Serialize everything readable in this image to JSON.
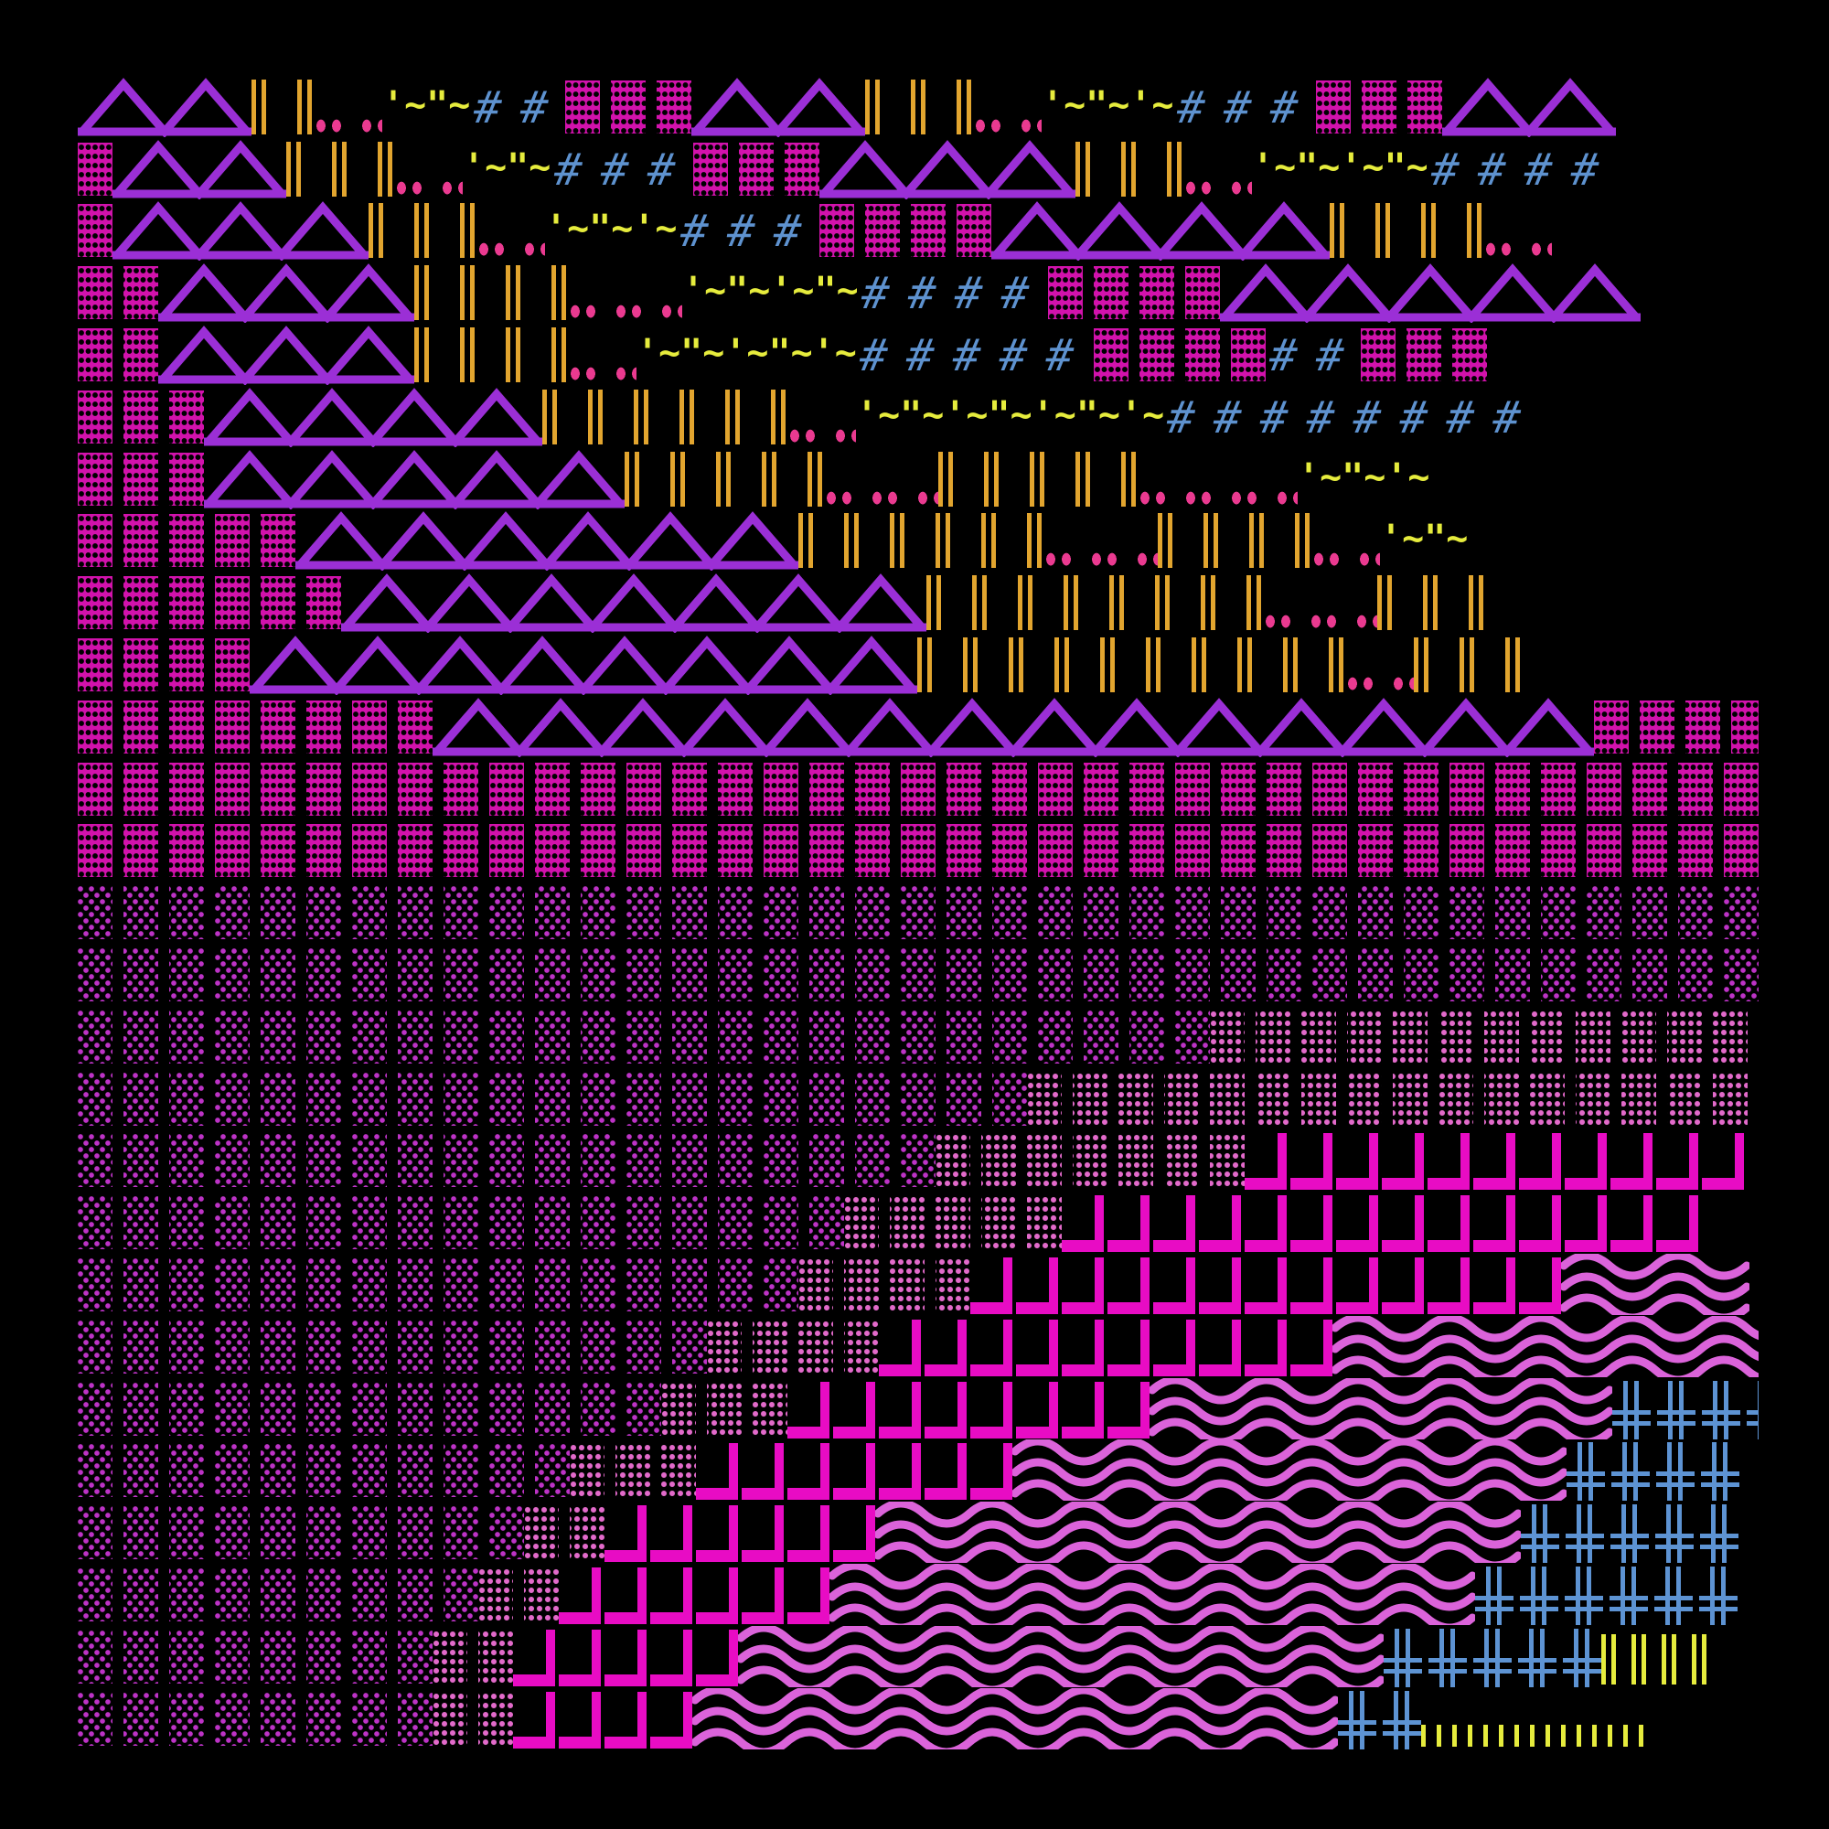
{
  "art": {
    "background": "#000000",
    "palette": {
      "triangle": "#9b2fd6",
      "dense_block": "#d212ac",
      "block_hole": "#000000",
      "sparse_dot": "#bd33c6",
      "medium_dot": "#e26aca",
      "gold_bar": "#e2a52f",
      "pink_dot": "#ea3a90",
      "yellow": "#e6ec3d",
      "hash_blue": "#5e92cf",
      "comb_magenta": "#e80cc4",
      "wave_violet": "#db63da",
      "cross_blue": "#5d93d3"
    },
    "glyph_legend": {
      "T": "triangle-run",
      "B": "dense-dot-block-run",
      "b": "sparse-dot-block-run",
      "m": "medium-dot-block-run",
      "I": "gold-double-bar-run",
      "d": "pink-dot-pair-run",
      "q": "quote-tilde-run",
      "H": "hash-run",
      "C": "magenta-comb-run",
      "W": "triple-wave-run",
      "X": "blue-double-cross-run",
      "Y": "yellow-double-bar-run",
      "y": "yellow-short-bar-run"
    },
    "tilde_unit": "'~",
    "tilde_unit_alt": "\"~",
    "hash_char": "#",
    "rows": [
      [
        [
          "T",
          2
        ],
        [
          "I",
          2
        ],
        [
          "d",
          2
        ],
        [
          "q",
          2
        ],
        [
          "H",
          2
        ],
        [
          "B",
          3
        ],
        [
          "T",
          2
        ],
        [
          "I",
          3
        ],
        [
          "d",
          2
        ],
        [
          "q",
          3
        ],
        [
          "H",
          3
        ],
        [
          "B",
          3
        ],
        [
          "T",
          2
        ]
      ],
      [
        [
          "B",
          1
        ],
        [
          "T",
          2
        ],
        [
          "I",
          3
        ],
        [
          "d",
          2
        ],
        [
          "q",
          2
        ],
        [
          "H",
          3
        ],
        [
          "B",
          3
        ],
        [
          "T",
          3
        ],
        [
          "I",
          3
        ],
        [
          "d",
          2
        ],
        [
          "q",
          4
        ],
        [
          "H",
          4
        ]
      ],
      [
        [
          "B",
          1
        ],
        [
          "T",
          3
        ],
        [
          "I",
          3
        ],
        [
          "d",
          2
        ],
        [
          "q",
          3
        ],
        [
          "H",
          3
        ],
        [
          "B",
          4
        ],
        [
          "T",
          4
        ],
        [
          "I",
          4
        ],
        [
          "d",
          2
        ]
      ],
      [
        [
          "B",
          2
        ],
        [
          "T",
          3
        ],
        [
          "I",
          4
        ],
        [
          "d",
          3
        ],
        [
          "q",
          4
        ],
        [
          "H",
          4
        ],
        [
          "B",
          4
        ],
        [
          "T",
          5
        ]
      ],
      [
        [
          "B",
          2
        ],
        [
          "T",
          3
        ],
        [
          "I",
          4
        ],
        [
          "d",
          2
        ],
        [
          "q",
          5
        ],
        [
          "H",
          5
        ],
        [
          "B",
          4
        ],
        [
          "H",
          2
        ],
        [
          "B",
          3
        ]
      ],
      [
        [
          "B",
          3
        ],
        [
          "T",
          4
        ],
        [
          "I",
          6
        ],
        [
          "d",
          2
        ],
        [
          "q",
          7
        ],
        [
          "H",
          8
        ]
      ],
      [
        [
          "B",
          3
        ],
        [
          "T",
          5
        ],
        [
          "I",
          5
        ],
        [
          "d",
          3
        ],
        [
          "I",
          5
        ],
        [
          "d",
          4
        ],
        [
          "q",
          3
        ]
      ],
      [
        [
          "B",
          5
        ],
        [
          "T",
          6
        ],
        [
          "I",
          6
        ],
        [
          "d",
          3
        ],
        [
          "I",
          4
        ],
        [
          "d",
          2
        ],
        [
          "q",
          2
        ]
      ],
      [
        [
          "B",
          6
        ],
        [
          "T",
          7
        ],
        [
          "I",
          8
        ],
        [
          "d",
          3
        ],
        [
          "I",
          3
        ]
      ],
      [
        [
          "B",
          4
        ],
        [
          "T",
          8
        ],
        [
          "I",
          10
        ],
        [
          "d",
          2
        ],
        [
          "I",
          3
        ]
      ],
      [
        [
          "B",
          8
        ],
        [
          "T",
          14
        ],
        [
          "B",
          4
        ]
      ],
      [
        [
          "B",
          37
        ]
      ],
      [
        [
          "B",
          37
        ]
      ],
      [
        [
          "b",
          37
        ]
      ],
      [
        [
          "b",
          37
        ]
      ],
      [
        [
          "b",
          25
        ],
        [
          "m",
          12
        ]
      ],
      [
        [
          "b",
          21
        ],
        [
          "m",
          16
        ]
      ],
      [
        [
          "b",
          19
        ],
        [
          "m",
          7
        ],
        [
          "C",
          11
        ]
      ],
      [
        [
          "b",
          17
        ],
        [
          "m",
          5
        ],
        [
          "C",
          14
        ]
      ],
      [
        [
          "b",
          16
        ],
        [
          "m",
          4
        ],
        [
          "C",
          13
        ],
        [
          "W",
          2
        ]
      ],
      [
        [
          "b",
          14
        ],
        [
          "m",
          4
        ],
        [
          "C",
          10
        ],
        [
          "W",
          5
        ]
      ],
      [
        [
          "b",
          13
        ],
        [
          "m",
          3
        ],
        [
          "C",
          8
        ],
        [
          "W",
          5
        ],
        [
          "X",
          4
        ]
      ],
      [
        [
          "b",
          11
        ],
        [
          "m",
          3
        ],
        [
          "C",
          7
        ],
        [
          "W",
          6
        ],
        [
          "X",
          4
        ]
      ],
      [
        [
          "b",
          10
        ],
        [
          "m",
          2
        ],
        [
          "C",
          6
        ],
        [
          "W",
          7
        ],
        [
          "X",
          5
        ]
      ],
      [
        [
          "b",
          9
        ],
        [
          "m",
          2
        ],
        [
          "C",
          6
        ],
        [
          "W",
          7
        ],
        [
          "X",
          6
        ]
      ],
      [
        [
          "b",
          8
        ],
        [
          "m",
          2
        ],
        [
          "C",
          5
        ],
        [
          "W",
          7
        ],
        [
          "X",
          5
        ],
        [
          "Y",
          4
        ]
      ],
      [
        [
          "b",
          8
        ],
        [
          "m",
          2
        ],
        [
          "C",
          4
        ],
        [
          "W",
          7
        ],
        [
          "X",
          2
        ],
        [
          "y",
          15
        ]
      ]
    ]
  }
}
